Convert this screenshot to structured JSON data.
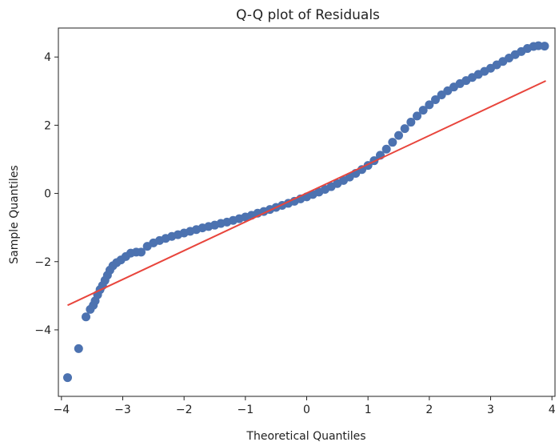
{
  "chart_data": {
    "type": "scatter",
    "title": "Q-Q plot of Residuals",
    "xlabel": "Theoretical Quantiles",
    "ylabel": "Sample Quantiles",
    "xlim": [
      -4.05,
      4.05
    ],
    "ylim": [
      -5.95,
      4.85
    ],
    "xticks": [
      -4,
      -3,
      -2,
      -1,
      0,
      1,
      2,
      3,
      4
    ],
    "yticks": [
      -4,
      -2,
      0,
      2,
      4
    ],
    "xtick_labels": [
      "−4",
      "−3",
      "−2",
      "−1",
      "0",
      "1",
      "2",
      "3",
      "4"
    ],
    "ytick_labels": [
      "−4",
      "−2",
      "0",
      "2",
      "4"
    ],
    "grid": false,
    "legend": "none",
    "colors": {
      "points": "#4c72b0",
      "line": "#e8453c",
      "axes": "#222222"
    },
    "series": [
      {
        "kind": "points",
        "x": [
          -3.9,
          -3.72,
          -3.6,
          -3.53,
          -3.48,
          -3.45,
          -3.41,
          -3.37,
          -3.33,
          -3.29,
          -3.25,
          -3.21,
          -3.16,
          -3.1,
          -3.03,
          -2.95,
          -2.87,
          -2.78,
          -2.7,
          -2.6,
          -2.5,
          -2.4,
          -2.3,
          -2.2,
          -2.1,
          -2.0,
          -1.9,
          -1.8,
          -1.7,
          -1.6,
          -1.5,
          -1.4,
          -1.3,
          -1.2,
          -1.1,
          -1.0,
          -0.9,
          -0.8,
          -0.7,
          -0.6,
          -0.5,
          -0.4,
          -0.3,
          -0.2,
          -0.1,
          0.0,
          0.1,
          0.2,
          0.3,
          0.4,
          0.5,
          0.6,
          0.7,
          0.8,
          0.9,
          1.0,
          1.1,
          1.2,
          1.3,
          1.4,
          1.5,
          1.6,
          1.7,
          1.8,
          1.9,
          2.0,
          2.1,
          2.2,
          2.3,
          2.4,
          2.5,
          2.6,
          2.7,
          2.8,
          2.9,
          3.0,
          3.1,
          3.2,
          3.3,
          3.4,
          3.5,
          3.6,
          3.7,
          3.78,
          3.88
        ],
        "y": [
          -5.4,
          -4.55,
          -3.62,
          -3.4,
          -3.28,
          -3.15,
          -2.97,
          -2.82,
          -2.7,
          -2.55,
          -2.4,
          -2.25,
          -2.12,
          -2.03,
          -1.95,
          -1.85,
          -1.75,
          -1.72,
          -1.72,
          -1.55,
          -1.45,
          -1.38,
          -1.32,
          -1.26,
          -1.21,
          -1.16,
          -1.11,
          -1.06,
          -1.01,
          -0.97,
          -0.93,
          -0.88,
          -0.84,
          -0.79,
          -0.74,
          -0.69,
          -0.64,
          -0.58,
          -0.53,
          -0.47,
          -0.41,
          -0.35,
          -0.29,
          -0.23,
          -0.16,
          -0.1,
          -0.03,
          0.04,
          0.12,
          0.2,
          0.29,
          0.38,
          0.48,
          0.59,
          0.7,
          0.82,
          0.96,
          1.12,
          1.3,
          1.5,
          1.7,
          1.9,
          2.09,
          2.27,
          2.44,
          2.6,
          2.75,
          2.89,
          3.01,
          3.12,
          3.22,
          3.31,
          3.4,
          3.49,
          3.58,
          3.67,
          3.77,
          3.87,
          3.97,
          4.07,
          4.16,
          4.25,
          4.31,
          4.33,
          4.32
        ]
      },
      {
        "kind": "reference-line",
        "x": [
          -3.9,
          3.9
        ],
        "y": [
          -3.28,
          3.3
        ]
      }
    ]
  }
}
